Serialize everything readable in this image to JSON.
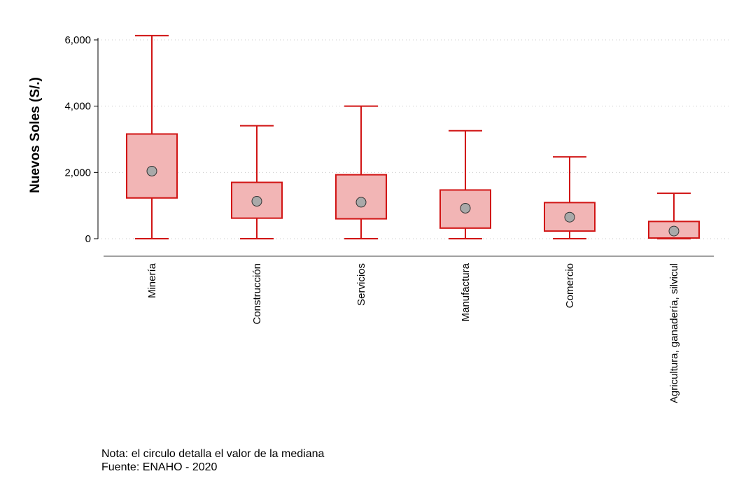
{
  "chart_data": {
    "type": "box",
    "ylabel": "Nuevos Soles (S/.)",
    "ylim": [
      0,
      6000
    ],
    "yticks": [
      0,
      2000,
      4000,
      6000
    ],
    "ytick_labels": [
      "0",
      "2,000",
      "4,000",
      "6,000"
    ],
    "grid": true,
    "categories": [
      "Minería",
      "Construcción",
      "Servicios",
      "Manufactura",
      "Comercio",
      "Agricultura, ganadería, silvicul"
    ],
    "boxes": [
      {
        "category": "Minería",
        "min": 0,
        "q1": 1230,
        "median": 2040,
        "q3": 3160,
        "max": 6130
      },
      {
        "category": "Construcción",
        "min": 0,
        "q1": 620,
        "median": 1130,
        "q3": 1700,
        "max": 3410
      },
      {
        "category": "Servicios",
        "min": 0,
        "q1": 600,
        "median": 1100,
        "q3": 1930,
        "max": 4000
      },
      {
        "category": "Manufactura",
        "min": 0,
        "q1": 320,
        "median": 920,
        "q3": 1470,
        "max": 3260
      },
      {
        "category": "Comercio",
        "min": 0,
        "q1": 230,
        "median": 650,
        "q3": 1090,
        "max": 2470
      },
      {
        "category": "Agricultura, ganadería, silvicul",
        "min": 0,
        "q1": 20,
        "median": 230,
        "q3": 520,
        "max": 1370
      }
    ],
    "colors": {
      "box_fill": "#f2b5b5",
      "box_stroke": "#d11515",
      "median_marker": "#a9a9a9",
      "grid": "#c8c8c8",
      "axis": "#000000",
      "baseline": "#a0a0a0"
    }
  },
  "notes": {
    "line1": "Nota: el circulo detalla el valor de la mediana",
    "line2": "Fuente: ENAHO - 2020"
  }
}
